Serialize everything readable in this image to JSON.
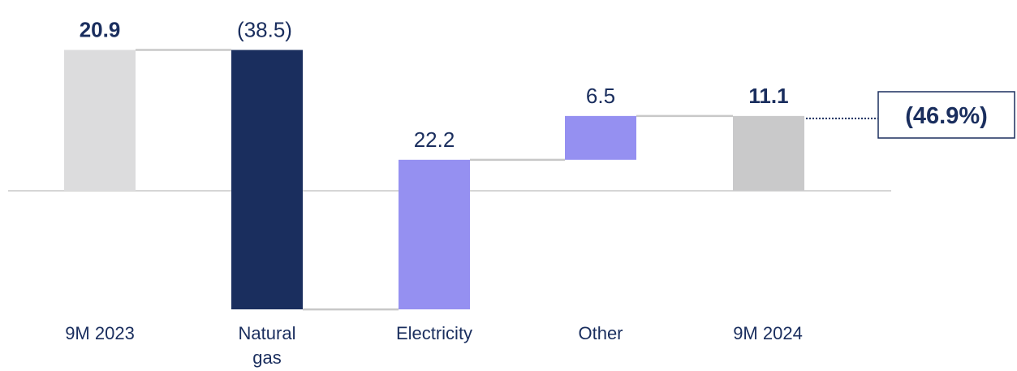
{
  "chart_data": {
    "type": "bar",
    "subtype": "waterfall",
    "categories": [
      "9M 2023",
      "Natural gas",
      "Electricity",
      "Other",
      "9M 2024"
    ],
    "values": [
      20.9,
      -38.5,
      22.2,
      6.5,
      11.1
    ],
    "value_labels": [
      "20.9",
      "(38.5)",
      "22.2",
      "6.5",
      "11.1"
    ],
    "bar_kinds": [
      "total",
      "delta",
      "delta",
      "delta",
      "total"
    ],
    "callout": "(46.9%)",
    "ylim": [
      -17.6,
      20.9
    ],
    "colors": {
      "start_total": "#dcdcdd",
      "end_total": "#c9c9ca",
      "natural_gas": "#1a2e5e",
      "increase": "#9590f1",
      "text": "#1a2e5e",
      "baseline": "#c8c8c8",
      "connector": "#c8c8c8"
    },
    "grid": false,
    "legend": "none"
  }
}
